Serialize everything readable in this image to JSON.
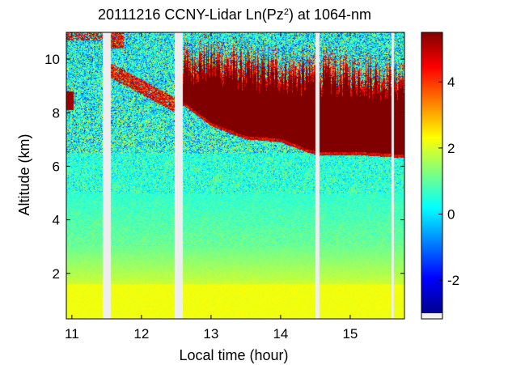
{
  "chart_data": {
    "type": "heatmap",
    "title_prefix": "20111216 CCNY-Lidar Ln(Pz",
    "title_superscript": "2",
    "title_suffix": ") at 1064-nm",
    "xlabel": "Local time (hour)",
    "ylabel": "Altitude (km)",
    "xlim": [
      10.92,
      15.78
    ],
    "ylim": [
      0.3,
      11.0
    ],
    "xticks": [
      11,
      12,
      13,
      14,
      15
    ],
    "xtick_labels": [
      "11",
      "12",
      "13",
      "14",
      "15"
    ],
    "yticks": [
      2,
      4,
      6,
      8,
      10
    ],
    "ytick_labels": [
      "2",
      "4",
      "6",
      "8",
      "10"
    ],
    "colorbar": {
      "colormap": "jet",
      "range": [
        -3.0,
        5.5
      ],
      "ticks": [
        -2,
        0,
        2,
        4
      ],
      "tick_labels": [
        "-2",
        "0",
        "2",
        "4"
      ]
    },
    "data_gaps_hours": [
      [
        11.44,
        11.56
      ],
      [
        12.48,
        12.59
      ],
      [
        14.5,
        14.56
      ],
      [
        15.59,
        15.63
      ]
    ],
    "cloud_layer": {
      "description": "high signal cloud layer",
      "value": 5.5,
      "base_km": [
        [
          12.59,
          8.3
        ],
        [
          13.0,
          7.5
        ],
        [
          13.5,
          7.0
        ],
        [
          14.0,
          6.9
        ],
        [
          14.4,
          6.5
        ],
        [
          14.56,
          6.4
        ],
        [
          15.2,
          6.4
        ],
        [
          15.78,
          6.3
        ]
      ],
      "top_km": [
        [
          12.59,
          9.6
        ],
        [
          13.0,
          9.7
        ],
        [
          13.5,
          9.4
        ],
        [
          14.0,
          9.3
        ],
        [
          14.5,
          9.2
        ],
        [
          15.0,
          9.2
        ],
        [
          15.78,
          9.0
        ]
      ]
    },
    "aerosol_layer": {
      "range_km": [
        0.3,
        1.6
      ],
      "value": 2.2
    },
    "background_values": [
      {
        "altitude_km": 1.0,
        "value": 2.2
      },
      {
        "altitude_km": 3.0,
        "value": 1.1
      },
      {
        "altitude_km": 5.0,
        "value": 0.6
      },
      {
        "altitude_km": 7.0,
        "value": 0.5
      },
      {
        "altitude_km": 10.0,
        "value": 0.3
      }
    ]
  }
}
